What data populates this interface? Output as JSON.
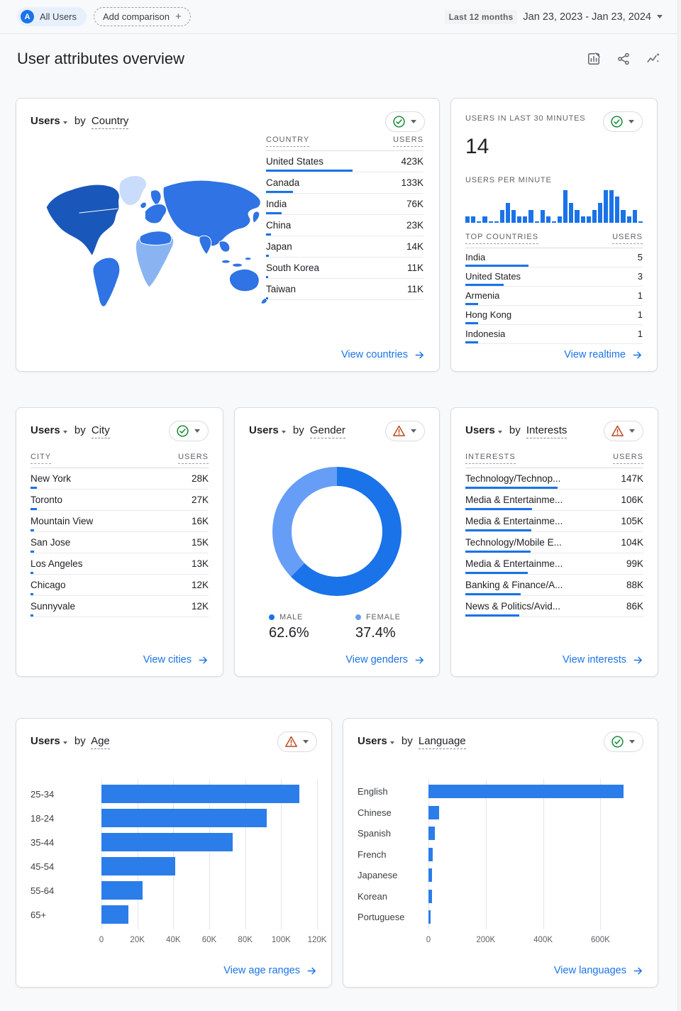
{
  "colors": {
    "accent": "#1a73e8",
    "accent_light": "#669df6",
    "chart_bar": "#2b7de9",
    "link": "#1a73e8",
    "text": "#202124",
    "text_secondary": "#5f6368",
    "border": "#dadce0",
    "divider": "#e8eaed",
    "bg": "#f8f9fa",
    "ok_green": "#1e8e3e",
    "warn_orange": "#b8491f",
    "chip_bg": "#e8f0fe",
    "preset_bg": "#f1f3f4",
    "map_dark": "#1a57ba",
    "map_mid": "#2f73e4",
    "map_light": "#8ab4f1",
    "map_pale": "#c9dcfb"
  },
  "labels": {
    "users": "Users",
    "by": "by"
  },
  "header": {
    "avatar_letter": "A",
    "segment_chip": "All Users",
    "add_comparison": "Add comparison",
    "plus": "+",
    "date_preset": "Last 12 months",
    "date_range": "Jan 23, 2023 - Jan 23, 2024"
  },
  "page_title": "User attributes overview",
  "cards": {
    "country": {
      "dim": "Country",
      "status": "ok",
      "link": "View countries",
      "table": {
        "col1": "COUNTRY",
        "col2": "USERS",
        "ref": 770,
        "rows": [
          {
            "label": "United States",
            "value": "423K",
            "v": 423
          },
          {
            "label": "Canada",
            "value": "133K",
            "v": 133
          },
          {
            "label": "India",
            "value": "76K",
            "v": 76
          },
          {
            "label": "China",
            "value": "23K",
            "v": 23
          },
          {
            "label": "Japan",
            "value": "14K",
            "v": 14
          },
          {
            "label": "South Korea",
            "value": "11K",
            "v": 11
          },
          {
            "label": "Taiwan",
            "value": "11K",
            "v": 11
          }
        ]
      }
    },
    "realtime": {
      "title": "USERS IN LAST 30 MINUTES",
      "big_value": "14",
      "per_minute_label": "USERS PER MINUTE",
      "status": "ok",
      "link": "View realtime",
      "sparkline": {
        "ref": 5,
        "rows": [
          {
            "v": 1
          },
          {
            "v": 1
          },
          {
            "v": 0
          },
          {
            "v": 1
          },
          {
            "v": 0
          },
          {
            "v": 0
          },
          {
            "v": 2
          },
          {
            "v": 3
          },
          {
            "v": 2
          },
          {
            "v": 1
          },
          {
            "v": 1
          },
          {
            "v": 2
          },
          {
            "v": 0
          },
          {
            "v": 2
          },
          {
            "v": 1
          },
          {
            "v": 0
          },
          {
            "v": 1
          },
          {
            "v": 5
          },
          {
            "v": 3
          },
          {
            "v": 2
          },
          {
            "v": 1
          },
          {
            "v": 1
          },
          {
            "v": 2
          },
          {
            "v": 3
          },
          {
            "v": 5
          },
          {
            "v": 5
          },
          {
            "v": 4
          },
          {
            "v": 2
          },
          {
            "v": 1
          },
          {
            "v": 2
          },
          {
            "v": 0
          }
        ]
      },
      "table": {
        "col1": "TOP COUNTRIES",
        "col2": "USERS",
        "ref": 14,
        "rows": [
          {
            "label": "India",
            "value": "5",
            "v": 5
          },
          {
            "label": "United States",
            "value": "3",
            "v": 3
          },
          {
            "label": "Armenia",
            "value": "1",
            "v": 1
          },
          {
            "label": "Hong Kong",
            "value": "1",
            "v": 1
          },
          {
            "label": "Indonesia",
            "value": "1",
            "v": 1
          }
        ]
      }
    },
    "city": {
      "dim": "City",
      "status": "ok",
      "link": "View cities",
      "table": {
        "col1": "CITY",
        "col2": "USERS",
        "ref": 770,
        "rows": [
          {
            "label": "New York",
            "value": "28K",
            "v": 28
          },
          {
            "label": "Toronto",
            "value": "27K",
            "v": 27
          },
          {
            "label": "Mountain View",
            "value": "16K",
            "v": 16
          },
          {
            "label": "San Jose",
            "value": "15K",
            "v": 15
          },
          {
            "label": "Los Angeles",
            "value": "13K",
            "v": 13
          },
          {
            "label": "Chicago",
            "value": "12K",
            "v": 12
          },
          {
            "label": "Sunnyvale",
            "value": "12K",
            "v": 12
          }
        ]
      }
    },
    "gender": {
      "dim": "Gender",
      "status": "warning",
      "link": "View genders",
      "male_label": "MALE",
      "male_pct": "62.6%",
      "male_num": 62.6,
      "female_label": "FEMALE",
      "female_pct": "37.4%",
      "female_num": 37.4
    },
    "interests": {
      "dim": "Interests",
      "status": "warning",
      "link": "View interests",
      "table": {
        "col1": "INTERESTS",
        "col2": "USERS",
        "ref": 283,
        "rows": [
          {
            "label": "Technology/Technop...",
            "value": "147K",
            "v": 147
          },
          {
            "label": "Media & Entertainme...",
            "value": "106K",
            "v": 106
          },
          {
            "label": "Media & Entertainme...",
            "value": "105K",
            "v": 105
          },
          {
            "label": "Technology/Mobile E...",
            "value": "104K",
            "v": 104
          },
          {
            "label": "Media & Entertainme...",
            "value": "99K",
            "v": 99
          },
          {
            "label": "Banking & Finance/A...",
            "value": "88K",
            "v": 88
          },
          {
            "label": "News & Politics/Avid...",
            "value": "86K",
            "v": 86
          }
        ]
      }
    },
    "age": {
      "dim": "Age",
      "status": "warning",
      "link": "View age ranges",
      "chart": {
        "type": "bar",
        "ref": 120,
        "rows": [
          {
            "label": "25-34",
            "v": 110
          },
          {
            "label": "18-24",
            "v": 92
          },
          {
            "label": "35-44",
            "v": 73
          },
          {
            "label": "45-54",
            "v": 41
          },
          {
            "label": "55-64",
            "v": 23
          },
          {
            "label": "65+",
            "v": 15
          }
        ]
      },
      "ticks": {
        "ref": 120,
        "rows": [
          {
            "label": "0",
            "v": 0
          },
          {
            "label": "20K",
            "v": 20
          },
          {
            "label": "40K",
            "v": 40
          },
          {
            "label": "60K",
            "v": 60
          },
          {
            "label": "80K",
            "v": 80
          },
          {
            "label": "100K",
            "v": 100
          },
          {
            "label": "120K",
            "v": 120
          }
        ]
      }
    },
    "language": {
      "dim": "Language",
      "status": "ok",
      "link": "View languages",
      "chart": {
        "type": "bar",
        "ref": 750,
        "rows": [
          {
            "label": "English",
            "v": 680
          },
          {
            "label": "Chinese",
            "v": 37
          },
          {
            "label": "Spanish",
            "v": 23
          },
          {
            "label": "French",
            "v": 14
          },
          {
            "label": "Japanese",
            "v": 13
          },
          {
            "label": "Korean",
            "v": 12
          },
          {
            "label": "Portuguese",
            "v": 7
          }
        ]
      },
      "ticks": {
        "ref": 750,
        "rows": [
          {
            "label": "0",
            "v": 0
          },
          {
            "label": "200K",
            "v": 200
          },
          {
            "label": "400K",
            "v": 400
          },
          {
            "label": "600K",
            "v": 600
          }
        ]
      }
    }
  }
}
